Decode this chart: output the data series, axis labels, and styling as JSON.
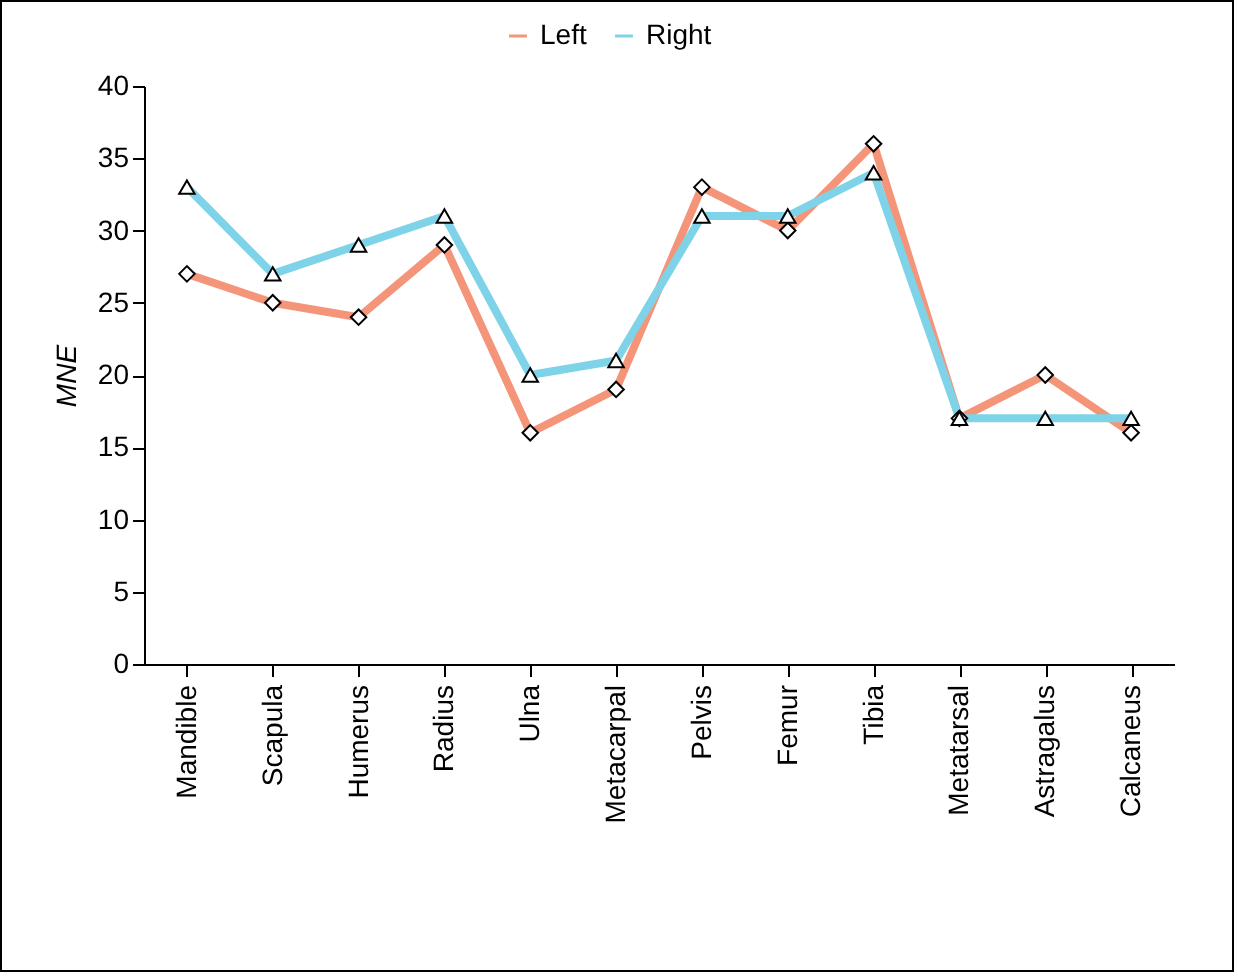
{
  "chart_data": {
    "type": "line",
    "ylabel": "MNE",
    "categories": [
      "Mandible",
      "Scapula",
      "Humerus",
      "Radius",
      "Ulna",
      "Metacarpal",
      "Pelvis",
      "Femur",
      "Tibia",
      "Metatarsal",
      "Astragalus",
      "Calcaneus"
    ],
    "series": [
      {
        "name": "Left",
        "color": "#f4957a",
        "marker": "diamond",
        "values": [
          27,
          25,
          24,
          29,
          16,
          19,
          33,
          30,
          36,
          17,
          20,
          16
        ]
      },
      {
        "name": "Right",
        "color": "#7fd3e8",
        "marker": "triangle",
        "values": [
          33,
          27,
          29,
          31,
          20,
          21,
          31,
          31,
          34,
          17,
          17,
          17
        ]
      }
    ],
    "ylim": [
      0,
      40
    ],
    "yticks": [
      0,
      5,
      10,
      15,
      20,
      25,
      30,
      35,
      40
    ],
    "grid": false,
    "legend": "top",
    "line_style": "solid"
  }
}
